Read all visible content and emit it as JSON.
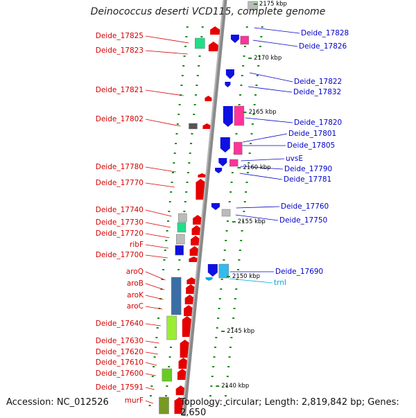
{
  "title": "Deinococcus deserti VCD115, complete genome",
  "accession": "Accession: NC_012526",
  "summary": "Topology: circular; Length: 2,819,842 bp; Genes: 2,650",
  "ticks": [
    "2175 kbp",
    "2170 kbp",
    "2165 kbp",
    "2160 kbp",
    "2155 kbp",
    "2150 kbp",
    "2145 kbp",
    "2140 kbp"
  ],
  "left_labels": [
    "Deide_17825",
    "Deide_17823",
    "Deide_17821",
    "Deide_17802",
    "Deide_17780",
    "Deide_17770",
    "Deide_17740",
    "Deide_17730",
    "Deide_17720",
    "ribF",
    "Deide_17700",
    "aroQ",
    "aroB",
    "aroK",
    "aroC",
    "Deide_17640",
    "Deide_17630",
    "Deide_17620",
    "Deide_17610",
    "Deide_17600",
    "Deide_17591",
    "murF"
  ],
  "right_labels": [
    "Deide_17828",
    "Deide_17826",
    "Deide_17822",
    "Deide_17832",
    "Deide_17820",
    "Deide_17801",
    "Deide_17805",
    "uvsE",
    "Deide_17790",
    "Deide_17781",
    "Deide_17760",
    "Deide_17750",
    "Deide_17690",
    "trnI"
  ],
  "colors": {
    "forward_strand": "#e60000",
    "reverse_strand": "#1010e0",
    "backbone": "#808080",
    "dots": "#1a8a1a",
    "trna": "#00aadd"
  }
}
